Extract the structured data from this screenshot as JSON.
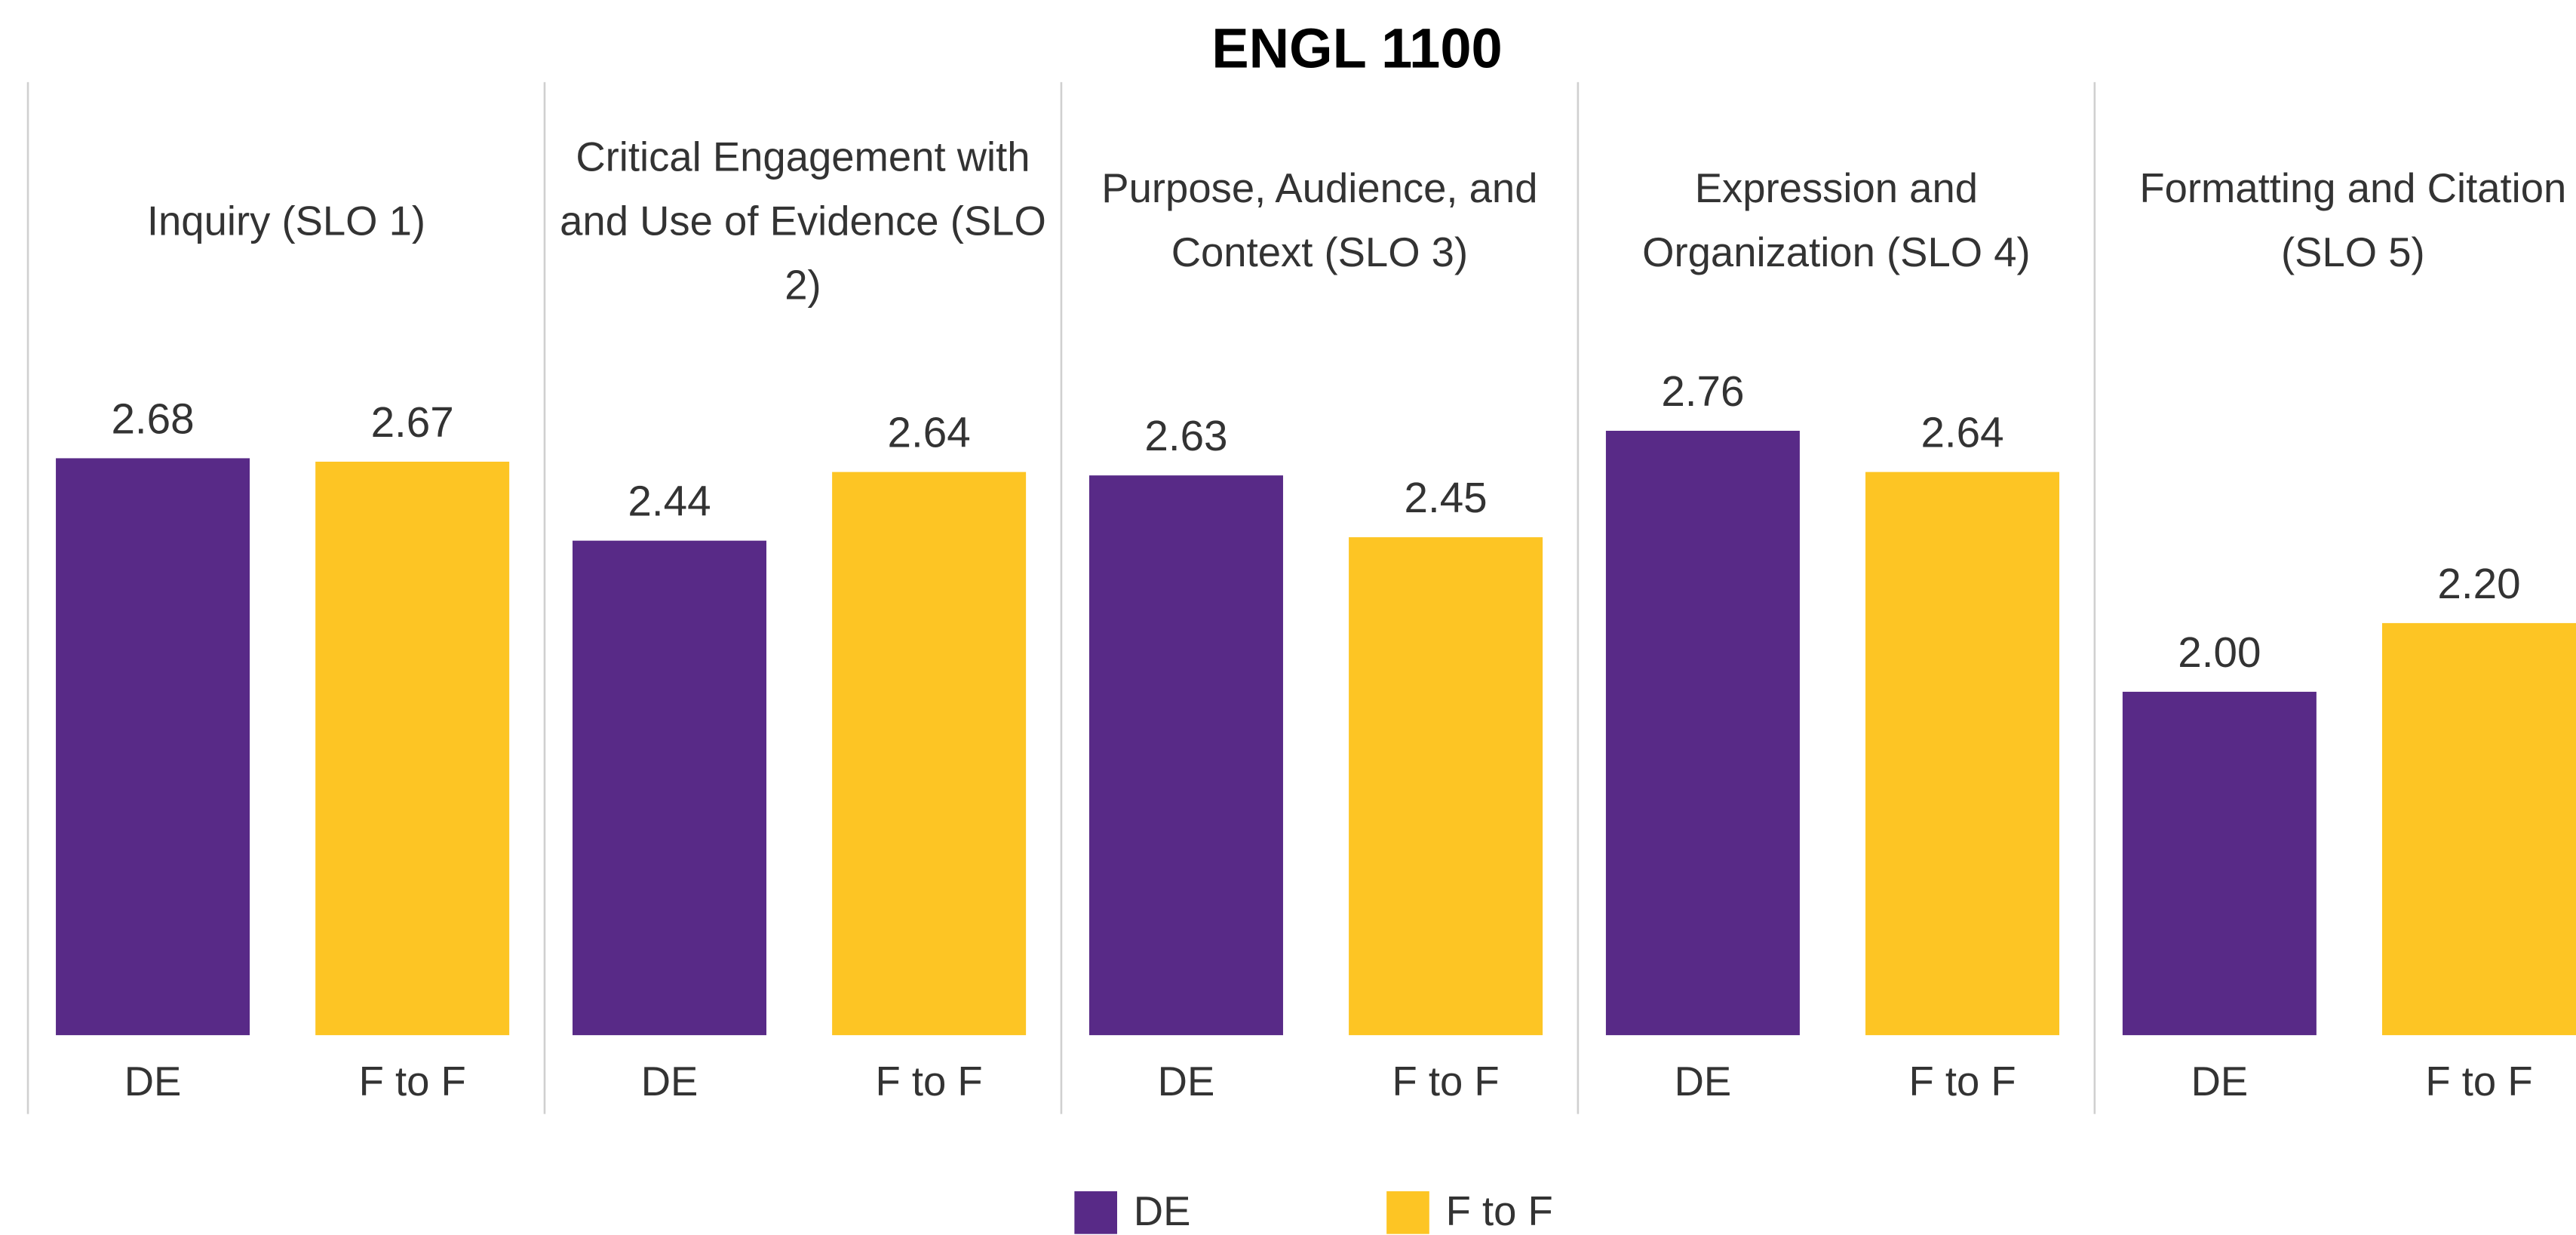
{
  "chart_data": {
    "type": "bar",
    "title": "ENGL 1100",
    "categories": [
      "Inquiry (SLO 1)",
      "Critical Engagement with and Use of Evidence (SLO 2)",
      "Purpose, Audience, and Context (SLO 3)",
      "Expression and Organization (SLO 4)",
      "Formatting and Citation (SLO 5)"
    ],
    "series": [
      {
        "name": "DE",
        "color": "#582a87",
        "values": [
          2.68,
          2.44,
          2.63,
          2.76,
          2.0
        ],
        "value_labels": [
          "2.68",
          "2.44",
          "2.63",
          "2.76",
          "2.00"
        ]
      },
      {
        "name": "F to F",
        "color": "#fdc524",
        "values": [
          2.67,
          2.64,
          2.45,
          2.64,
          2.2
        ],
        "value_labels": [
          "2.67",
          "2.64",
          "2.45",
          "2.64",
          "2.20"
        ]
      }
    ],
    "ylim": [
      1,
      3
    ],
    "legend": "bottom"
  }
}
